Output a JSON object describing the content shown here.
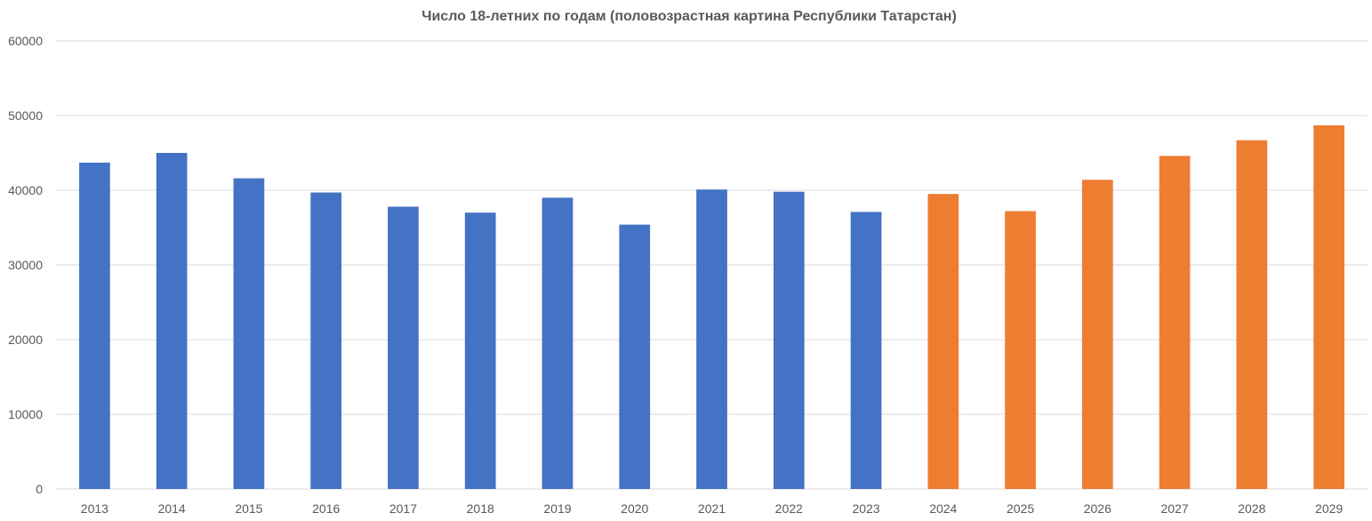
{
  "chart_data": {
    "type": "bar",
    "title": "Число 18-летних по годам (половозрастная картина Республики Татарстан)",
    "xlabel": "",
    "ylabel": "",
    "ylim": [
      0,
      60000
    ],
    "yticks": [
      "0",
      "10000",
      "20000",
      "30000",
      "40000",
      "50000",
      "60000"
    ],
    "grid": true,
    "legend": "none",
    "categories": [
      "2013",
      "2014",
      "2015",
      "2016",
      "2017",
      "2018",
      "2019",
      "2020",
      "2021",
      "2022",
      "2023",
      "2024",
      "2025",
      "2026",
      "2027",
      "2028",
      "2029"
    ],
    "values": [
      43700,
      45000,
      41600,
      39700,
      37800,
      37000,
      39000,
      35400,
      40100,
      39800,
      37100,
      39500,
      37200,
      41400,
      44600,
      46700,
      48700
    ],
    "bar_colors": [
      "#4472C4",
      "#4472C4",
      "#4472C4",
      "#4472C4",
      "#4472C4",
      "#4472C4",
      "#4472C4",
      "#4472C4",
      "#4472C4",
      "#4472C4",
      "#4472C4",
      "#ED7D31",
      "#ED7D31",
      "#ED7D31",
      "#ED7D31",
      "#ED7D31",
      "#ED7D31"
    ]
  }
}
